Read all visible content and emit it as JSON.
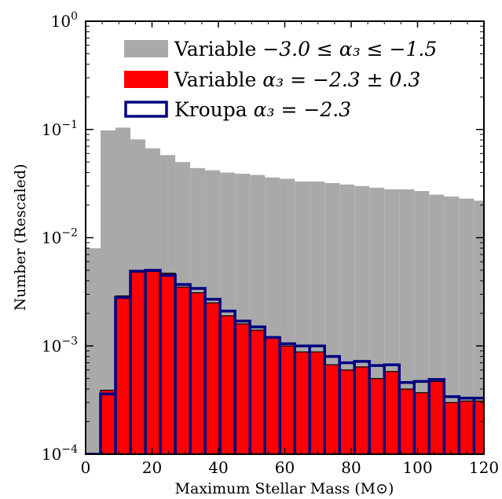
{
  "chart_data": {
    "type": "bar",
    "xlabel": "Maximum Stellar Mass (M⊙)",
    "ylabel": "Number (Rescaled)",
    "xlim": [
      0,
      120
    ],
    "ylim": [
      0.0001,
      1
    ],
    "yscale": "log",
    "grid": false,
    "legend_position": "top-right",
    "x_ticks": [
      0,
      20,
      40,
      60,
      80,
      100,
      120
    ],
    "x_tick_labels": [
      "0",
      "20",
      "40",
      "60",
      "80",
      "100",
      "120"
    ],
    "y_ticks": [
      {
        "value": 0.0001,
        "base": "10",
        "exp": "−4"
      },
      {
        "value": 0.001,
        "base": "10",
        "exp": "−3"
      },
      {
        "value": 0.01,
        "base": "10",
        "exp": "−2"
      },
      {
        "value": 0.1,
        "base": "10",
        "exp": "−1"
      },
      {
        "value": 1,
        "base": "10",
        "exp": "0"
      }
    ],
    "bin_edges": [
      0,
      4.5,
      9,
      13.5,
      18,
      22.5,
      27,
      31.5,
      36,
      40.5,
      45,
      49.5,
      54,
      58.5,
      63,
      67.5,
      72,
      76.5,
      81,
      85.5,
      90,
      94.5,
      99,
      103.5,
      108,
      112.5,
      117,
      121.5
    ],
    "series": [
      {
        "legend": {
          "prefix": "Variable ",
          "math": "−3.0 ≤ α₃ ≤ −1.5"
        },
        "style": "filled",
        "color": "#a9a9a9",
        "values": [
          0.008,
          0.098,
          0.104,
          0.081,
          0.067,
          0.058,
          0.05,
          0.044,
          0.042,
          0.04,
          0.039,
          0.038,
          0.036,
          0.035,
          0.033,
          0.033,
          0.032,
          0.031,
          0.03,
          0.029,
          0.028,
          0.028,
          0.027,
          0.025,
          0.024,
          0.023,
          0.022
        ]
      },
      {
        "legend": {
          "prefix": "Variable ",
          "math": "α₃ = −2.3 ± 0.3"
        },
        "style": "filled",
        "color": "#ff0000",
        "values": [
          0.0001,
          0.00039,
          0.0029,
          0.0048,
          0.0049,
          0.0047,
          0.0035,
          0.0031,
          0.0025,
          0.0019,
          0.0016,
          0.0014,
          0.0012,
          0.001,
          0.00088,
          0.00088,
          0.00067,
          0.0006,
          0.00064,
          0.0005,
          0.00058,
          0.0004,
          0.00037,
          0.00047,
          0.0003,
          0.00031,
          0.00031
        ]
      },
      {
        "legend": {
          "prefix": "Kroupa ",
          "math": "α₃ = −2.3"
        },
        "style": "outline",
        "color": "#000080",
        "values": [
          0.0001,
          0.00036,
          0.0028,
          0.0049,
          0.005,
          0.0045,
          0.0037,
          0.0034,
          0.0027,
          0.0021,
          0.0017,
          0.0015,
          0.0012,
          0.00105,
          0.001,
          0.001,
          0.0008,
          0.0007,
          0.00072,
          0.00066,
          0.00067,
          0.00046,
          0.00047,
          0.00049,
          0.00034,
          0.00033,
          0.00033
        ]
      }
    ]
  }
}
